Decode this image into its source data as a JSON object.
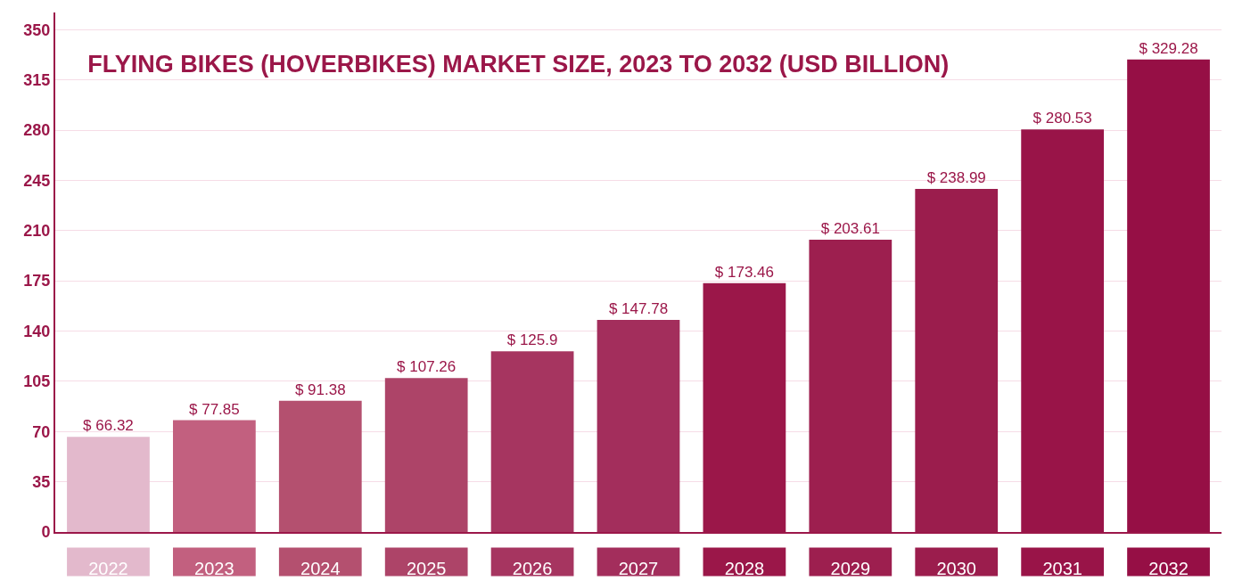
{
  "chart_data": {
    "type": "bar",
    "title": "FLYING BIKES (HOVERBIKES) MARKET SIZE, 2023 TO 2032 (USD BILLION)",
    "categories": [
      "2022",
      "2023",
      "2024",
      "2025",
      "2026",
      "2027",
      "2028",
      "2029",
      "2030",
      "2031",
      "2032"
    ],
    "values": [
      66.32,
      77.85,
      91.38,
      107.26,
      125.9,
      147.78,
      173.46,
      203.61,
      238.99,
      280.53,
      329.28
    ],
    "value_labels": [
      "$ 66.32",
      "$ 77.85",
      "$ 91.38",
      "$ 107.26",
      "$ 125.9",
      "$ 147.78",
      "$ 173.46",
      "$ 203.61",
      "$ 238.99",
      "$ 280.53",
      "$ 329.28"
    ],
    "colors": [
      "#e3b9cc",
      "#c2607f",
      "#b4506f",
      "#ad4468",
      "#a63560",
      "#a32e5c",
      "#9b1749",
      "#9d1f4f",
      "#9b1d4d",
      "#991448",
      "#960f45"
    ],
    "ylim": [
      0,
      362
    ],
    "yticks": [
      0,
      35,
      70,
      105,
      140,
      175,
      210,
      245,
      280,
      315,
      350
    ],
    "grid": "y"
  }
}
